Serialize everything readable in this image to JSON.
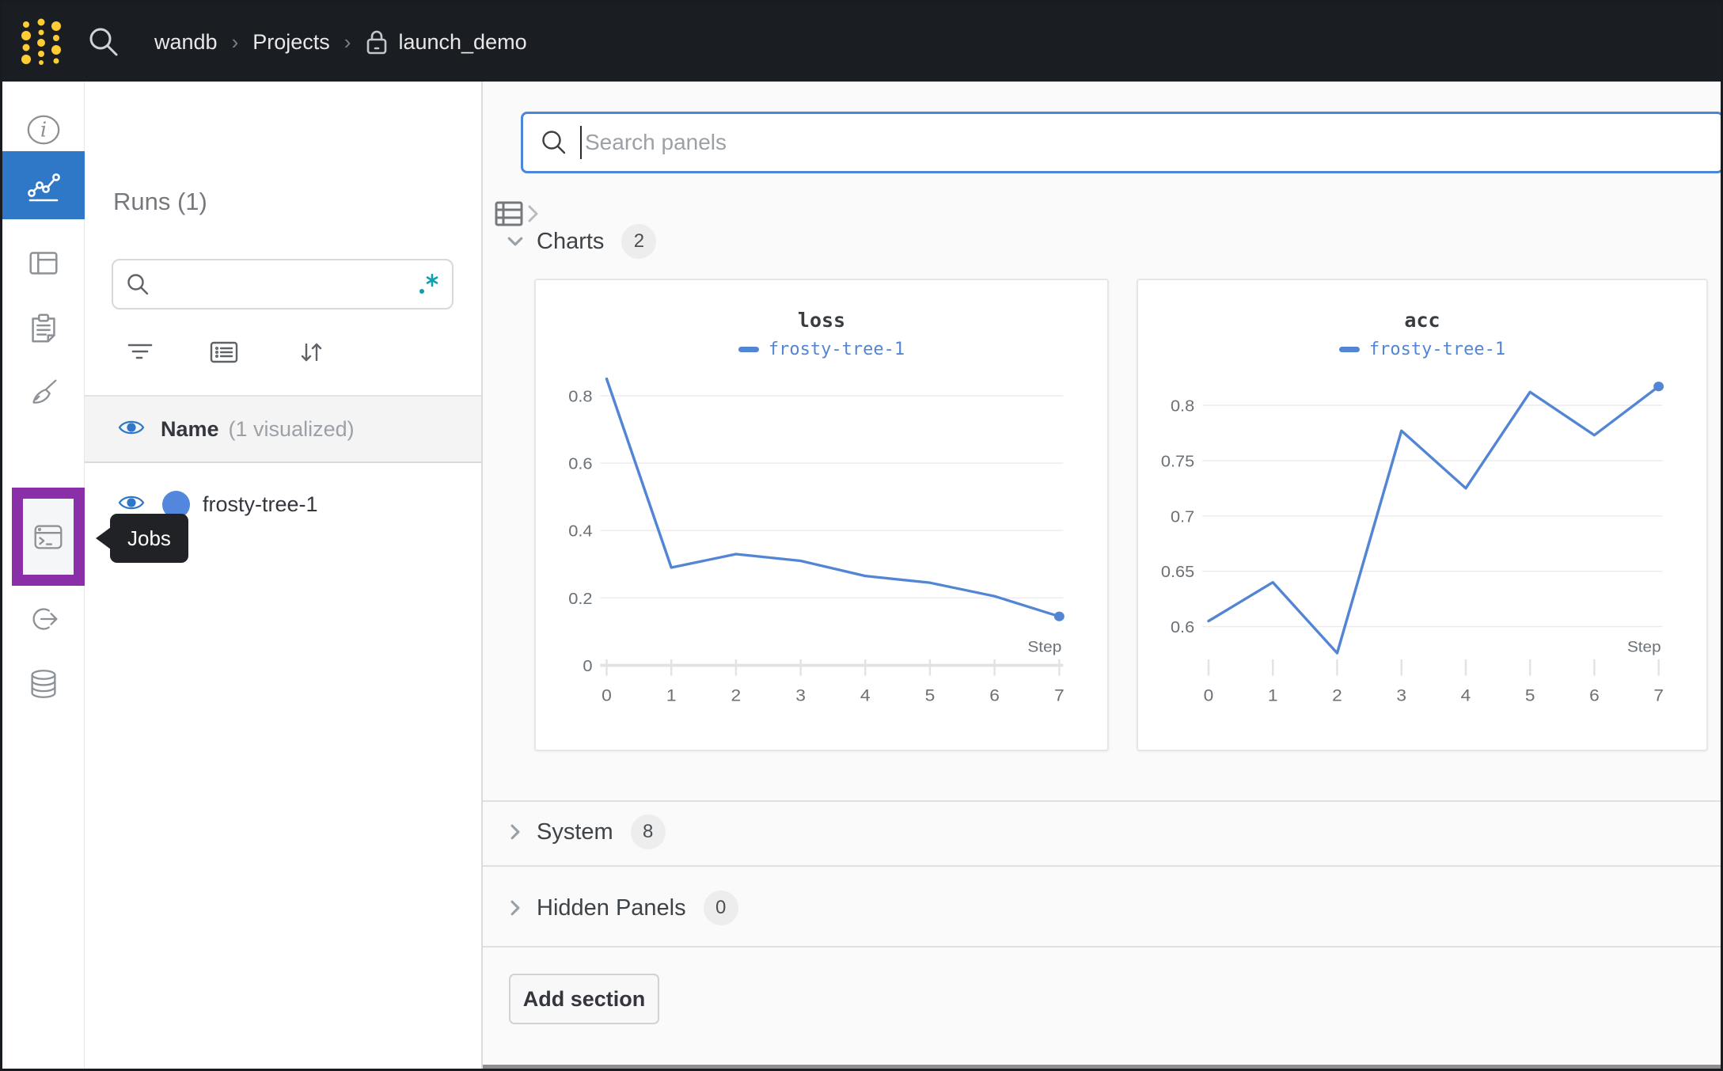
{
  "topbar": {
    "breadcrumb": {
      "team": "wandb",
      "section": "Projects",
      "project": "launch_demo",
      "separator": "›"
    }
  },
  "sidebar": {
    "tooltip": "Jobs",
    "items": [
      {
        "id": "overview",
        "icon": "info-icon",
        "active": false
      },
      {
        "id": "workspace",
        "icon": "line-chart-icon",
        "active": true
      },
      {
        "id": "runs-table",
        "icon": "table-icon",
        "active": false
      },
      {
        "id": "reports",
        "icon": "clipboard-icon",
        "active": false
      },
      {
        "id": "sweeps",
        "icon": "broom-icon",
        "active": false
      },
      {
        "id": "jobs",
        "icon": "terminal-icon",
        "active": false,
        "highlighted": true
      },
      {
        "id": "automations",
        "icon": "link-arrow-icon",
        "active": false
      },
      {
        "id": "artifacts",
        "icon": "database-icon",
        "active": false
      }
    ]
  },
  "runs_panel": {
    "title": "Runs (1)",
    "search": {
      "value": "",
      "placeholder": ""
    },
    "header": {
      "label": "Name",
      "annotation": "(1 visualized)"
    },
    "runs": [
      {
        "name": "frosty-tree-1",
        "color": "#5387dd",
        "visible": true
      }
    ]
  },
  "main": {
    "search": {
      "value": "",
      "placeholder": "Search panels"
    },
    "sections": [
      {
        "label": "Charts",
        "count": "2",
        "state": "expanded"
      },
      {
        "label": "System",
        "count": "8",
        "state": "collapsed"
      },
      {
        "label": "Hidden Panels",
        "count": "0",
        "state": "collapsed"
      }
    ],
    "add_section_label": "Add section"
  },
  "chart_data": [
    {
      "type": "line",
      "title": "loss",
      "series": [
        {
          "name": "frosty-tree-1",
          "values": [
            0.85,
            0.29,
            0.33,
            0.31,
            0.265,
            0.245,
            0.205,
            0.145
          ]
        }
      ],
      "x": [
        0,
        1,
        2,
        3,
        4,
        5,
        6,
        7
      ],
      "xlabel": "Step",
      "xticks": [
        0,
        1,
        2,
        3,
        4,
        5,
        6,
        7
      ],
      "yticks": [
        0.8,
        0.6,
        0.4,
        0.2,
        0
      ],
      "ytick_labels": [
        "0.8",
        "0.6",
        "0.4",
        "0.2",
        "0"
      ],
      "ylim": [
        0,
        0.87
      ],
      "grid": true,
      "legend_position": "top",
      "line_color": "#5285d4"
    },
    {
      "type": "line",
      "title": "acc",
      "series": [
        {
          "name": "frosty-tree-1",
          "values": [
            0.605,
            0.64,
            0.576,
            0.777,
            0.725,
            0.812,
            0.773,
            0.817
          ]
        }
      ],
      "x": [
        0,
        1,
        2,
        3,
        4,
        5,
        6,
        7
      ],
      "xlabel": "Step",
      "xticks": [
        0,
        1,
        2,
        3,
        4,
        5,
        6,
        7
      ],
      "yticks": [
        0.8,
        0.75,
        0.7,
        0.65,
        0.6
      ],
      "ytick_labels": [
        "0.8",
        "0.75",
        "0.7",
        "0.65",
        "0.6"
      ],
      "ylim": [
        0.565,
        0.83
      ],
      "grid": true,
      "legend_position": "top",
      "line_color": "#5285d4"
    }
  ],
  "colors": {
    "topbar_bg": "#1a1d21",
    "logo_yellow": "#ffcc33",
    "active_sidebar_blue": "#2e78c7",
    "highlight_purple": "#8a2fa8",
    "chart_line_blue": "#5285d4",
    "run_dot_blue": "#5387dd",
    "regex_teal": "#0e9fb0",
    "focus_border_blue": "#4a86d9"
  }
}
